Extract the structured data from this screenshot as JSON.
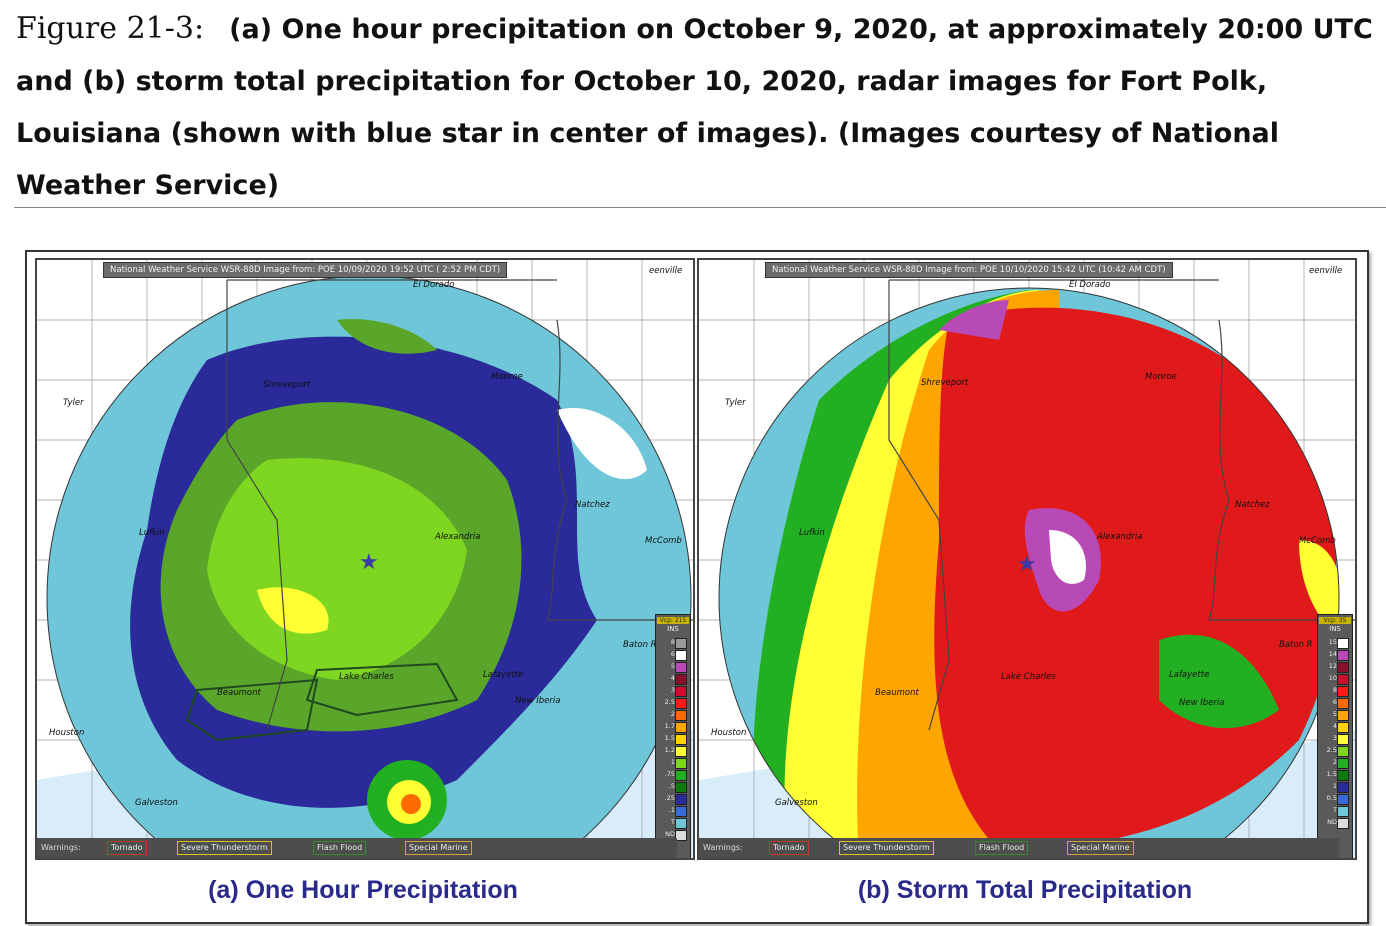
{
  "caption": {
    "figure_label": "Figure 21-3:",
    "text": "(a) One hour precipitation on October 9, 2020, at approximately 20:00 UTC and (b) storm total precipitation for October 10, 2020, radar images for Fort Polk, Louisiana (shown with blue star in center of images). (Images courtesy of National Weather Service)"
  },
  "panels": {
    "a": {
      "header": "National Weather Service WSR-88D Image from: POE 10/09/2020 19:52 UTC ( 2:52 PM CDT)",
      "title": "(a)  One Hour Precipitation",
      "legend_head": "Vcp: 215",
      "legend_unit": "INS",
      "legend": [
        {
          "v": "8",
          "c": "#9a9a9a"
        },
        {
          "v": "6",
          "c": "#ffffff"
        },
        {
          "v": "5",
          "c": "#b84ab8"
        },
        {
          "v": "4",
          "c": "#8a0f2a"
        },
        {
          "v": "3",
          "c": "#c8102e"
        },
        {
          "v": "2.5",
          "c": "#ff1a1a"
        },
        {
          "v": "2",
          "c": "#ff6a00"
        },
        {
          "v": "1.7",
          "c": "#ffa500"
        },
        {
          "v": "1.5",
          "c": "#ffd200"
        },
        {
          "v": "1.2",
          "c": "#ffff33"
        },
        {
          "v": "1",
          "c": "#7fd620"
        },
        {
          "v": ".75",
          "c": "#22b022"
        },
        {
          "v": ".5",
          "c": "#0f7a0f"
        },
        {
          "v": ".25",
          "c": "#2a2a9a"
        },
        {
          "v": ".1",
          "c": "#3a6ad6"
        },
        {
          "v": "T",
          "c": "#6ec6d8"
        },
        {
          "v": "ND",
          "c": "#dddddd"
        }
      ]
    },
    "b": {
      "header": "National Weather Service WSR-88D Image from: POE 10/10/2020 15:42 UTC (10:42 AM CDT)",
      "title": "(b)  Storm Total Precipitation",
      "legend_head": "Vcp: 35",
      "legend_unit": "INS",
      "legend": [
        {
          "v": "15",
          "c": "#ffffff"
        },
        {
          "v": "14",
          "c": "#b84ab8"
        },
        {
          "v": "12",
          "c": "#8a0f2a"
        },
        {
          "v": "10",
          "c": "#c8102e"
        },
        {
          "v": "8",
          "c": "#ff1a1a"
        },
        {
          "v": "6",
          "c": "#ff6a00"
        },
        {
          "v": "5",
          "c": "#ffa500"
        },
        {
          "v": "4",
          "c": "#ffd200"
        },
        {
          "v": "3",
          "c": "#ffff33"
        },
        {
          "v": "2.5",
          "c": "#7fd620"
        },
        {
          "v": "2",
          "c": "#22b022"
        },
        {
          "v": "1.5",
          "c": "#0f7a0f"
        },
        {
          "v": "1",
          "c": "#2a2a9a"
        },
        {
          "v": "0.5",
          "c": "#3a6ad6"
        },
        {
          "v": "T",
          "c": "#6ec6d8"
        },
        {
          "v": "ND",
          "c": "#dddddd"
        }
      ]
    }
  },
  "warnings": {
    "label": "Warnings:",
    "tornado": "Tornado",
    "severe": "Severe Thunderstorm",
    "flash": "Flash Flood",
    "marine": "Special Marine"
  },
  "places": {
    "el_dorado": "El Dorado",
    "shreveport": "Shreveport",
    "monroe": "Monroe",
    "tyler": "Tyler",
    "natchez": "Natchez",
    "lufkin": "Lufkin",
    "alexandria": "Alexandria",
    "mccomb": "McComb",
    "baton_rouge": "Baton R",
    "lake_charles": "Lake Charles",
    "lafayette": "Lafayette",
    "beaumont": "Beaumont",
    "new_iberia": "New Iberia",
    "houston": "Houston",
    "galveston": "Galveston",
    "greenville": "eenville"
  }
}
